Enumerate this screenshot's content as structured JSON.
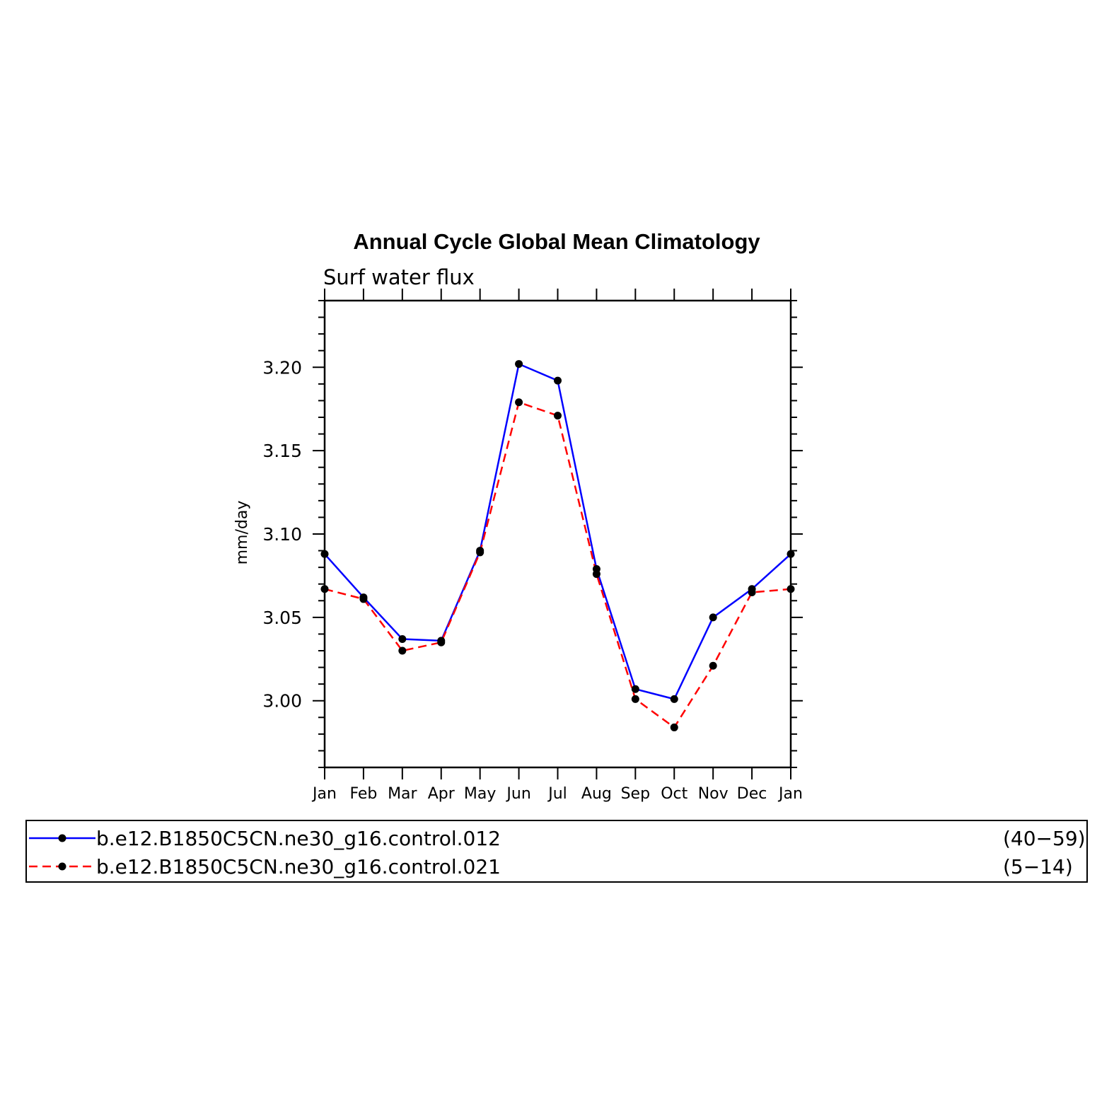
{
  "chart_data": {
    "type": "line",
    "title": "Annual Cycle Global Mean Climatology",
    "subtitle": "Surf water flux",
    "xlabel": "",
    "ylabel": "mm/day",
    "categories": [
      "Jan",
      "Feb",
      "Mar",
      "Apr",
      "May",
      "Jun",
      "Jul",
      "Aug",
      "Sep",
      "Oct",
      "Nov",
      "Dec",
      "Jan"
    ],
    "ylim": [
      2.96,
      3.24
    ],
    "yticks": [
      "3.00",
      "3.05",
      "3.10",
      "3.15",
      "3.20"
    ],
    "grid": false,
    "legend_position": "bottom",
    "series": [
      {
        "name": "b.e12.B1850C5CN.ne30_g16.control.012",
        "years": "(40−59)",
        "color": "#0000ff",
        "dash": "solid",
        "values": [
          3.088,
          3.062,
          3.037,
          3.036,
          3.09,
          3.202,
          3.192,
          3.079,
          3.007,
          3.001,
          3.05,
          3.067,
          3.088
        ]
      },
      {
        "name": "b.e12.B1850C5CN.ne30_g16.control.021",
        "years": "(5−14)",
        "color": "#ff0000",
        "dash": "dashed",
        "values": [
          3.067,
          3.061,
          3.03,
          3.035,
          3.089,
          3.179,
          3.171,
          3.076,
          3.001,
          2.984,
          3.021,
          3.065,
          3.067
        ]
      }
    ]
  }
}
